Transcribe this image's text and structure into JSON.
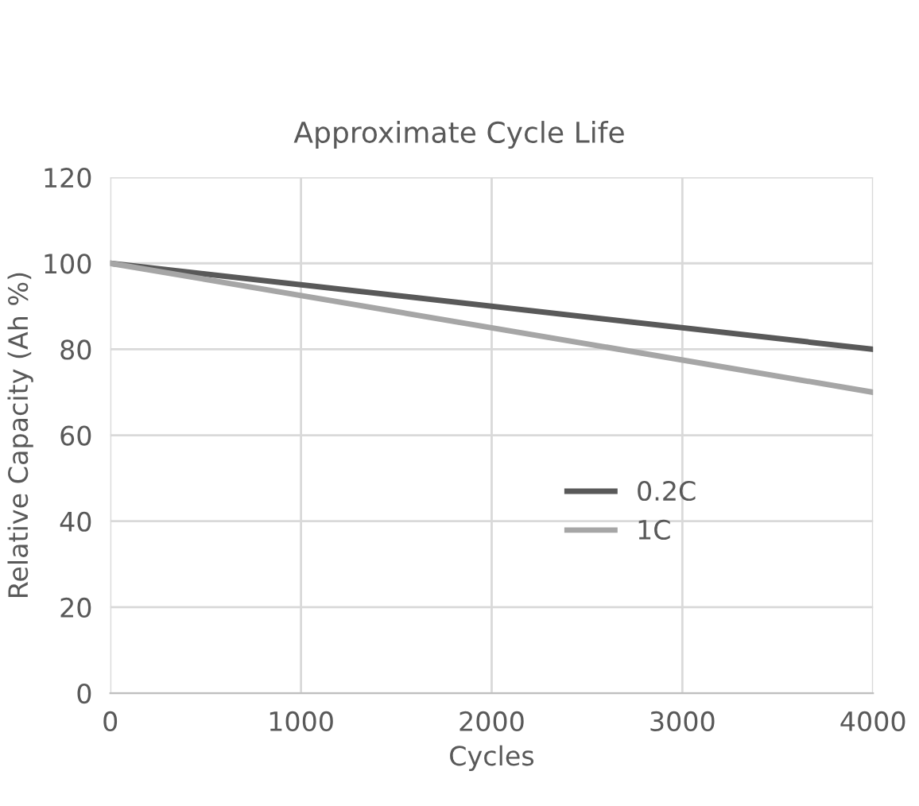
{
  "chart_data": {
    "type": "line",
    "title": "Approximate Cycle Life",
    "xlabel": "Cycles",
    "ylabel": "Relative Capacity (Ah %)",
    "x": [
      0,
      4000
    ],
    "series": [
      {
        "name": "0.2C",
        "color": "#595959",
        "values": [
          100,
          80
        ]
      },
      {
        "name": "1C",
        "color": "#a6a6a6",
        "values": [
          100,
          70
        ]
      }
    ],
    "xlim": [
      0,
      4000
    ],
    "xticks": [
      0,
      1000,
      2000,
      3000,
      4000
    ],
    "ylim": [
      0,
      120
    ],
    "yticks": [
      0,
      20,
      40,
      60,
      80,
      100,
      120
    ],
    "grid": true,
    "legend": "right",
    "marker": "none",
    "line_style": "solid"
  }
}
